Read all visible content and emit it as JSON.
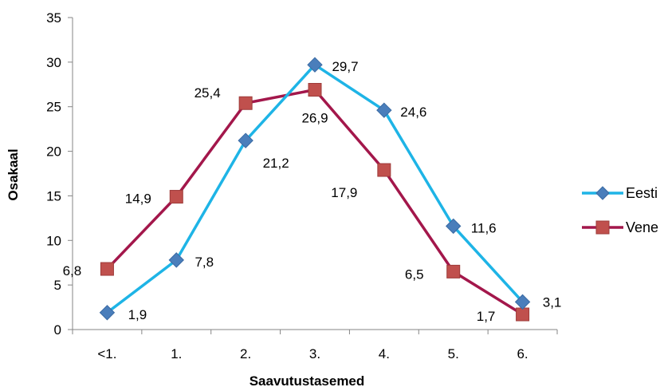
{
  "chart_data": {
    "type": "line",
    "categories": [
      "<1.",
      "1.",
      "2.",
      "3.",
      "4.",
      "5.",
      "6."
    ],
    "series": [
      {
        "name": "Eesti",
        "values": [
          1.9,
          7.8,
          21.2,
          29.7,
          24.6,
          11.6,
          3.1
        ],
        "labels": [
          "1,9",
          "7,8",
          "21,2",
          "29,7",
          "24,6",
          "11,6",
          "3,1"
        ],
        "color": "#1EB4E6",
        "marker": "diamond"
      },
      {
        "name": "Vene",
        "values": [
          6.8,
          14.9,
          25.4,
          26.9,
          17.9,
          6.5,
          1.7
        ],
        "labels": [
          "6,8",
          "14,9",
          "25,4",
          "26,9",
          "17,9",
          "6,5",
          "1,7"
        ],
        "color": "#A3174B",
        "marker_color": "#C0504D",
        "marker": "square"
      }
    ],
    "xlabel": "Saavutustasemed",
    "ylabel": "Osakaal",
    "ylim": [
      0,
      35
    ],
    "yticks": [
      0,
      5,
      10,
      15,
      20,
      25,
      30,
      35
    ],
    "grid": false,
    "legend_position": "right"
  }
}
